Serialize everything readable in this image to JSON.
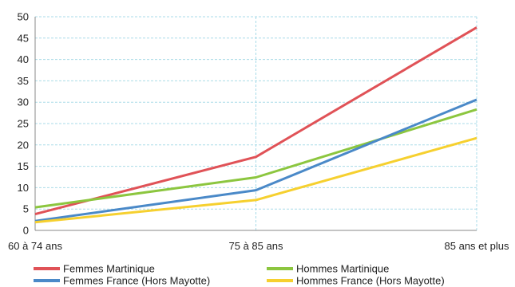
{
  "chart_data": {
    "type": "line",
    "categories": [
      "60 à 74 ans",
      "75 à 85 ans",
      "85 ans et plus"
    ],
    "ylim": [
      0,
      50
    ],
    "yticks": [
      0,
      5,
      10,
      15,
      20,
      25,
      30,
      35,
      40,
      45,
      50
    ],
    "grid": true,
    "legend_position": "bottom",
    "series": [
      {
        "name": "Femmes Martinique",
        "color": "#e05257",
        "values": [
          3.8,
          17.2,
          47.5
        ]
      },
      {
        "name": "Hommes Martinique",
        "color": "#8cc63f",
        "values": [
          5.4,
          12.4,
          28.3
        ]
      },
      {
        "name": "Femmes France (Hors Mayotte)",
        "color": "#4a89c8",
        "values": [
          2.2,
          9.4,
          30.6
        ]
      },
      {
        "name": "Hommes France (Hors Mayotte)",
        "color": "#f6d02f",
        "values": [
          1.9,
          7.1,
          21.6
        ]
      }
    ]
  }
}
